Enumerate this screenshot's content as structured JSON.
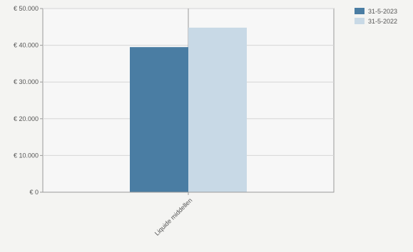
{
  "chart_data": {
    "type": "bar",
    "title": "",
    "xlabel": "",
    "ylabel": "",
    "categories": [
      "Liquide middellen"
    ],
    "series": [
      {
        "name": "31-5-2023",
        "values": [
          39500
        ],
        "color": "#4a7da3"
      },
      {
        "name": "31-5-2022",
        "values": [
          44800
        ],
        "color": "#c8d9e6"
      }
    ],
    "ylim": [
      0,
      50000
    ],
    "y_ticks": [
      {
        "value": 0,
        "label": "€ 0"
      },
      {
        "value": 10000,
        "label": "€ 10.000"
      },
      {
        "value": 20000,
        "label": "€ 20.000"
      },
      {
        "value": 30000,
        "label": "€ 30.000"
      },
      {
        "value": 40000,
        "label": "€ 40.000"
      },
      {
        "value": 50000,
        "label": "€ 50.000"
      }
    ],
    "grid": true,
    "legend_position": "top-right",
    "colors": {
      "plot_background": "#f7f7f7",
      "grid": "#d6d6d6",
      "axis": "#9a9a9a",
      "text": "#555555"
    }
  }
}
